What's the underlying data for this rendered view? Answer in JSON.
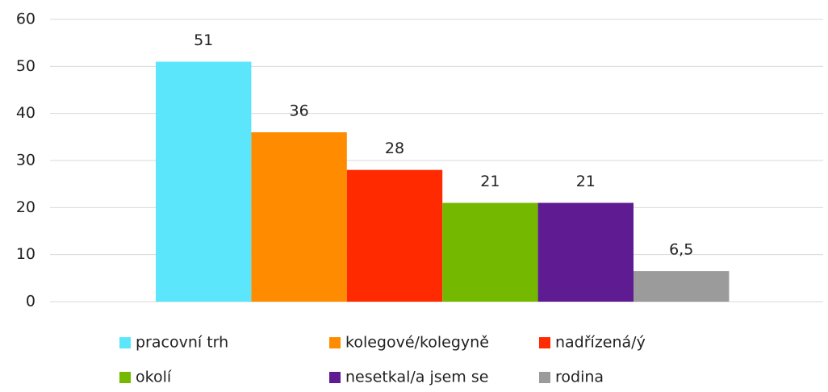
{
  "chart_data": {
    "type": "bar",
    "series": [
      {
        "name": "pracovní trh",
        "color": "#5ce6fc",
        "values": [
          51
        ]
      },
      {
        "name": "kolegové/kolegyně",
        "color": "#ff8c00",
        "values": [
          36
        ]
      },
      {
        "name": "nadřízená/ý",
        "color": "#ff2a00",
        "values": [
          28
        ]
      },
      {
        "name": "okolí",
        "color": "#74b900",
        "values": [
          21
        ]
      },
      {
        "name": "nesetkal/a jsem se",
        "color": "#5e1b92",
        "values": [
          21
        ]
      },
      {
        "name": "rodina",
        "color": "#9b9b9b",
        "values": [
          6.5
        ],
        "value_labels": [
          "6,5"
        ]
      }
    ],
    "ylim": [
      0,
      60
    ],
    "yticks": [
      0,
      10,
      20,
      30,
      40,
      50,
      60
    ],
    "grid": true,
    "legend": "bottom"
  }
}
